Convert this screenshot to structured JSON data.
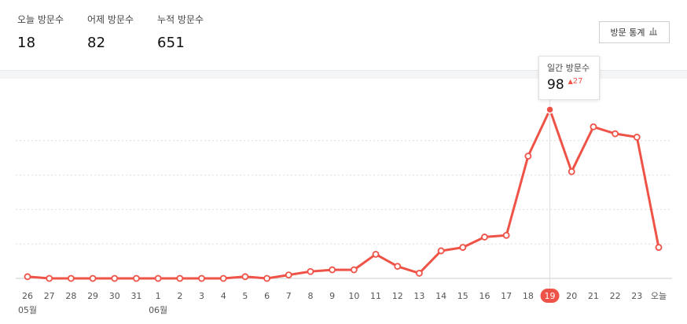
{
  "summary": {
    "today": {
      "label": "오늘 방문수",
      "value": "18"
    },
    "yesterday": {
      "label": "어제 방문수",
      "value": "82"
    },
    "total": {
      "label": "누적 방문수",
      "value": "651"
    }
  },
  "stats_button": {
    "label": "방문 통계",
    "icon": "bar-chart-icon"
  },
  "tooltip": {
    "title": "일간 방문수",
    "value": "98",
    "delta": "27",
    "delta_icon": "up-arrow-icon"
  },
  "colors": {
    "line": "#ef5347",
    "grid": "#dddddd",
    "highlight": "#ef5347"
  },
  "chart_data": {
    "type": "line",
    "categories": [
      "26",
      "27",
      "28",
      "29",
      "30",
      "31",
      "1",
      "2",
      "3",
      "4",
      "5",
      "6",
      "7",
      "8",
      "9",
      "10",
      "11",
      "12",
      "13",
      "14",
      "15",
      "16",
      "17",
      "18",
      "19",
      "20",
      "21",
      "22",
      "23",
      "오늘"
    ],
    "month_labels": [
      {
        "index": 0,
        "label": "05월"
      },
      {
        "index": 6,
        "label": "06월"
      }
    ],
    "series": [
      {
        "values": [
          1,
          0,
          0,
          0,
          0,
          0,
          0,
          0,
          0,
          0,
          1,
          0,
          2,
          4,
          5,
          5,
          14,
          7,
          3,
          16,
          18,
          24,
          25,
          71,
          98,
          62,
          88,
          84,
          82,
          18
        ]
      }
    ],
    "ylim": [
      0,
      100
    ],
    "grid": true,
    "highlight_index": 24
  }
}
